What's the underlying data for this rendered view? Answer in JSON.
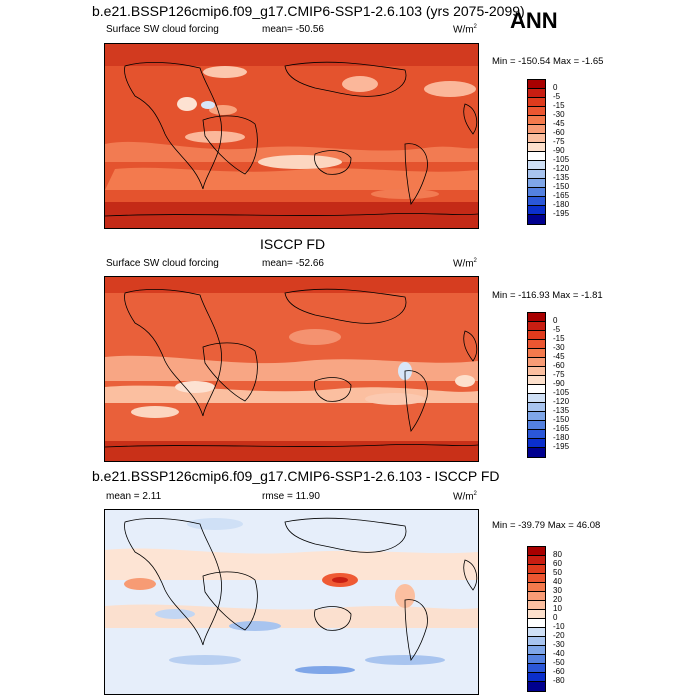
{
  "header": {
    "case_title": "b.e21.BSSP126cmip6.f09_g17.CMIP6-SSP1-2.6.103 (yrs 2075-2099)",
    "season": "ANN"
  },
  "panels": [
    {
      "variable": "Surface SW cloud forcing",
      "stat_label": "mean= -50.56",
      "units": "W/m",
      "units_sup": "2",
      "minmax": "Min = -150.54 Max =  -1.65"
    },
    {
      "title": "ISCCP FD",
      "variable": "Surface SW cloud forcing",
      "stat_label": "mean= -52.66",
      "units": "W/m",
      "units_sup": "2",
      "minmax": "Min = -116.93 Max =  -1.81"
    },
    {
      "title": "b.e21.BSSP126cmip6.f09_g17.CMIP6-SSP1-2.6.103 - ISCCP FD",
      "mean_label": "mean =   2.11",
      "rmse_label": "rmse =  11.90",
      "units": "W/m",
      "units_sup": "2",
      "minmax": "Min = -39.79 Max =  46.08"
    }
  ],
  "colorbars": {
    "abs_levels": [
      "0",
      "-5",
      "-15",
      "-30",
      "-45",
      "-60",
      "-75",
      "-90",
      "-105",
      "-120",
      "-135",
      "-150",
      "-165",
      "-180",
      "-195"
    ],
    "abs_colors": [
      "#a80000",
      "#c81e12",
      "#df3b1d",
      "#ec5631",
      "#f47a4d",
      "#f89c76",
      "#fbbfa0",
      "#fde0cc",
      "#ffffff",
      "#cfe0f6",
      "#a8c4ef",
      "#7fa6e8",
      "#5481e0",
      "#2b57d8",
      "#0b2fcc",
      "#00008f"
    ],
    "diff_levels": [
      "80",
      "60",
      "50",
      "40",
      "30",
      "20",
      "10",
      "0",
      "-10",
      "-20",
      "-30",
      "-40",
      "-50",
      "-60",
      "-80"
    ],
    "diff_colors": [
      "#a80000",
      "#c81e12",
      "#df3b1d",
      "#ec5631",
      "#f47a4d",
      "#f89c76",
      "#fbbfa0",
      "#fde0cc",
      "#ffffff",
      "#cfe0f6",
      "#a8c4ef",
      "#7fa6e8",
      "#5481e0",
      "#2b57d8",
      "#0b2fcc",
      "#00008f"
    ]
  },
  "chart_data": [
    {
      "type": "heatmap",
      "title": "Surface SW cloud forcing",
      "subtitle": "b.e21.BSSP126cmip6.f09_g17.CMIP6-SSP1-2.6.103 (yrs 2075-2099)",
      "units": "W/m2",
      "mean": -50.56,
      "min": -150.54,
      "max": -1.65,
      "contour_levels": [
        0,
        -5,
        -15,
        -30,
        -45,
        -60,
        -75,
        -90,
        -105,
        -120,
        -135,
        -150,
        -165,
        -180,
        -195
      ]
    },
    {
      "type": "heatmap",
      "title": "Surface SW cloud forcing",
      "subtitle": "ISCCP FD",
      "units": "W/m2",
      "mean": -52.66,
      "min": -116.93,
      "max": -1.81,
      "contour_levels": [
        0,
        -5,
        -15,
        -30,
        -45,
        -60,
        -75,
        -90,
        -105,
        -120,
        -135,
        -150,
        -165,
        -180,
        -195
      ]
    },
    {
      "type": "heatmap",
      "title": "b.e21.BSSP126cmip6.f09_g17.CMIP6-SSP1-2.6.103 - ISCCP FD",
      "units": "W/m2",
      "mean": 2.11,
      "rmse": 11.9,
      "min": -39.79,
      "max": 46.08,
      "contour_levels": [
        80,
        60,
        50,
        40,
        30,
        20,
        10,
        0,
        -10,
        -20,
        -30,
        -40,
        -50,
        -60,
        -80
      ]
    }
  ]
}
